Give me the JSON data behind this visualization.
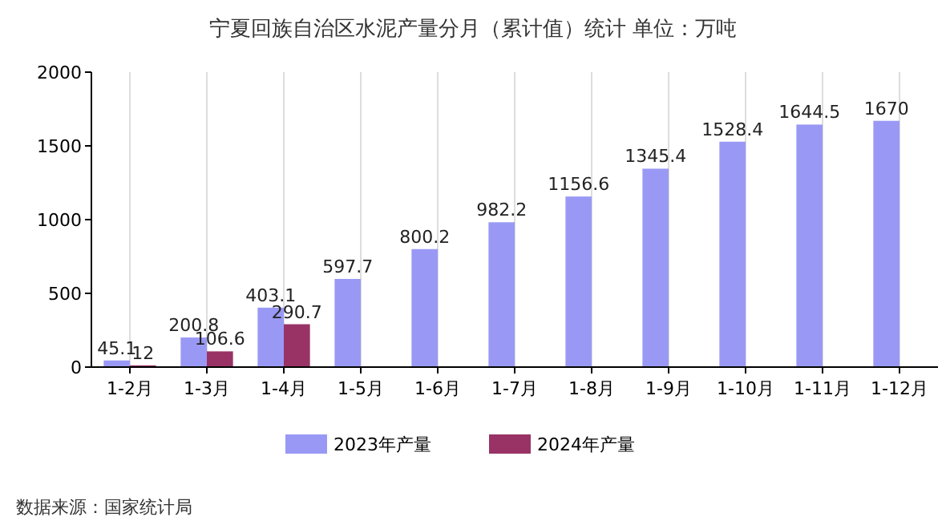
{
  "chart_data": {
    "type": "bar",
    "title": "宁夏回族自治区水泥产量分月（累计值）统计  单位：万吨",
    "categories": [
      "1-2月",
      "1-3月",
      "1-4月",
      "1-5月",
      "1-6月",
      "1-7月",
      "1-8月",
      "1-9月",
      "1-10月",
      "1-11月",
      "1-12月"
    ],
    "series": [
      {
        "name": "2023年产量",
        "color": "#9999f5",
        "values": [
          45.1,
          200.8,
          403.1,
          597.7,
          800.2,
          982.2,
          1156.6,
          1345.4,
          1528.4,
          1644.5,
          1670
        ]
      },
      {
        "name": "2024年产量",
        "color": "#993366",
        "values": [
          12,
          106.6,
          290.7,
          null,
          null,
          null,
          null,
          null,
          null,
          null,
          null
        ]
      }
    ],
    "ylim": [
      0,
      2000
    ],
    "yticks": [
      0,
      500,
      1000,
      1500,
      2000
    ],
    "grid": "x",
    "legend": "bottom",
    "data_labels": true,
    "annotations": [
      "数据来源：国家统计局"
    ]
  }
}
